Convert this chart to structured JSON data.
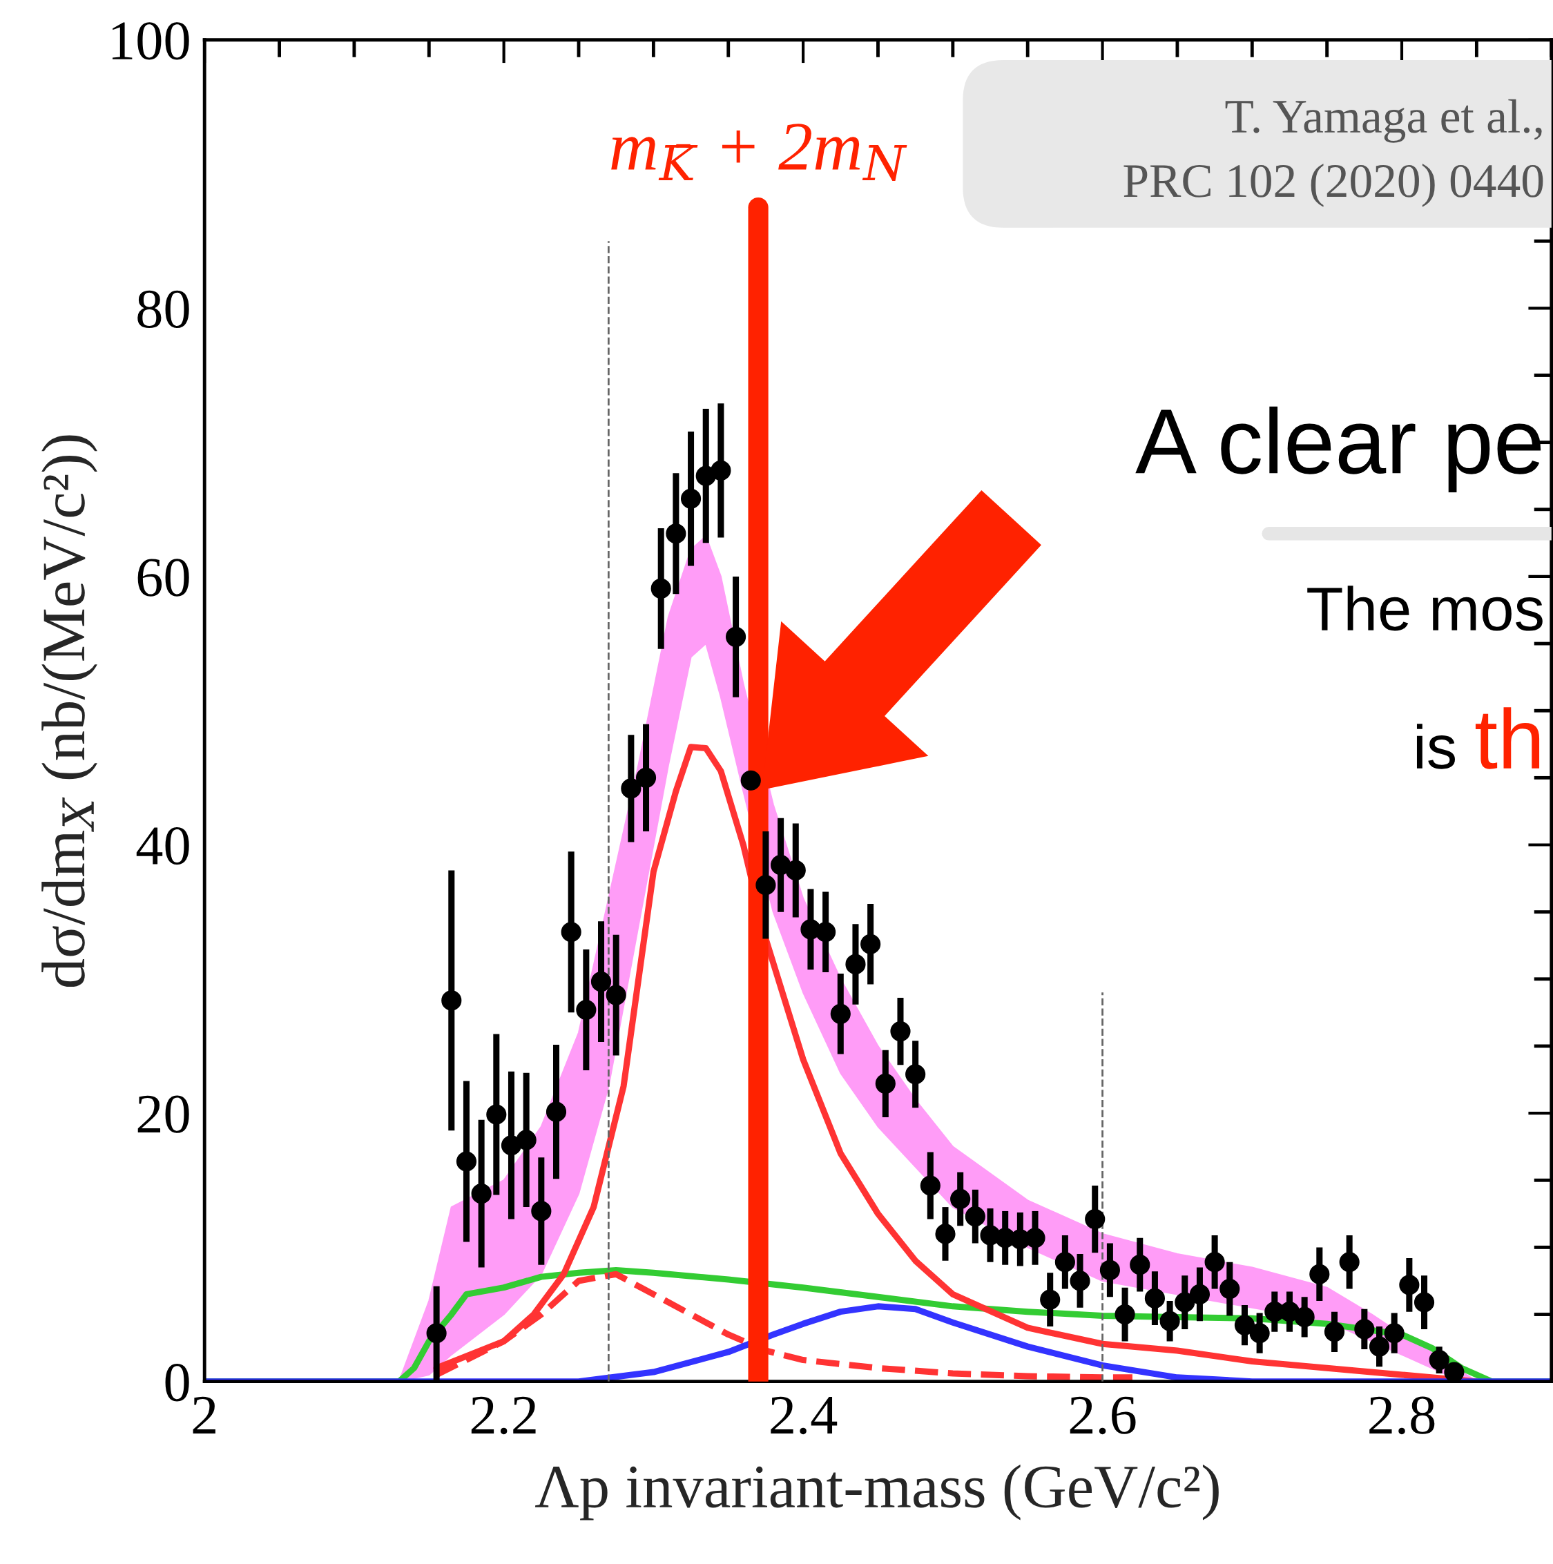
{
  "chart_data": {
    "type": "line",
    "xlabel": "Λp invariant-mass (GeV/c²)",
    "ylabel": "dσ/dm$_{X}$ (nb/(MeV/c²))",
    "xlim": [
      2,
      2.9
    ],
    "ylim": [
      0,
      100
    ],
    "xticks": [
      2,
      2.2,
      2.4,
      2.6,
      2.8
    ],
    "yticks": [
      0,
      20,
      40,
      60,
      80,
      100
    ],
    "grid": false,
    "legend": false,
    "annotations": [
      "T. Yamaga et al.,",
      "PRC 102 (2020) 0440",
      "A clear pe",
      "The mos",
      "is",
      "th"
    ],
    "ref_lines": [
      {
        "axis": "x",
        "value": 2.27,
        "color": "#666666",
        "line_style": "dashed"
      },
      {
        "axis": "x",
        "value": 2.37,
        "label": "m$_{K̄}$ + 2m$_{N}$",
        "color": "#ff2200",
        "line_style": "solid"
      },
      {
        "axis": "x",
        "value": 2.6,
        "color": "#666666",
        "line_style": "dashed"
      }
    ],
    "series": [
      {
        "type": "area",
        "color": "#ff9cf7",
        "x": [
          2.13,
          2.15,
          2.165,
          2.2,
          2.225,
          2.25,
          2.27,
          2.29,
          2.31,
          2.325,
          2.335,
          2.345,
          2.36,
          2.38,
          2.4,
          2.425,
          2.45,
          2.475,
          2.5,
          2.55,
          2.6,
          2.65,
          2.7,
          2.75,
          2.78,
          2.8,
          2.83,
          2.85
        ],
        "lower": [
          0,
          0.5,
          2,
          5,
          8,
          14,
          22,
          34,
          46,
          54,
          55,
          51,
          44,
          35,
          29,
          23,
          19,
          16,
          13,
          10,
          7.5,
          6.5,
          5.5,
          4.5,
          3,
          2,
          0.5,
          0
        ],
        "upper": [
          0,
          6,
          13,
          15,
          19,
          26,
          36,
          46,
          57,
          62,
          63,
          60,
          52,
          43,
          36,
          30,
          25,
          21,
          17.5,
          13.5,
          11,
          9.5,
          8.5,
          7,
          5,
          3.5,
          1.5,
          0
        ],
        "values": [
          null,
          null,
          null,
          null,
          null,
          null,
          null,
          null,
          null,
          null,
          null,
          null,
          null,
          null,
          null,
          null,
          null,
          null,
          null,
          null,
          null,
          null,
          null,
          null,
          null,
          null,
          null,
          null
        ]
      },
      {
        "color": "#33cc33",
        "line_style": "solid",
        "x": [
          2.0,
          2.13,
          2.14,
          2.15,
          2.165,
          2.175,
          2.2,
          2.225,
          2.25,
          2.275,
          2.3,
          2.35,
          2.4,
          2.45,
          2.5,
          2.55,
          2.6,
          2.65,
          2.7,
          2.75,
          2.8,
          2.82,
          2.84,
          2.86,
          2.9
        ],
        "values": [
          0,
          0,
          1,
          3,
          5,
          6.5,
          7,
          7.8,
          8.1,
          8.3,
          8.1,
          7.6,
          7.0,
          6.3,
          5.6,
          5.2,
          4.9,
          4.8,
          4.7,
          4.3,
          3.5,
          2.5,
          1,
          0,
          0
        ]
      },
      {
        "color": "#ff3333",
        "line_style": "solid",
        "x": [
          2.155,
          2.2,
          2.22,
          2.24,
          2.26,
          2.28,
          2.3,
          2.315,
          2.325,
          2.335,
          2.345,
          2.36,
          2.375,
          2.4,
          2.425,
          2.45,
          2.475,
          2.5,
          2.55,
          2.6,
          2.65,
          2.7,
          2.75,
          2.8,
          2.85
        ],
        "values": [
          1,
          3,
          5,
          8,
          13,
          22,
          38,
          44,
          47.3,
          47.2,
          45.5,
          40,
          33,
          24,
          17,
          12.5,
          9,
          6.5,
          4,
          2.8,
          2.3,
          1.5,
          1,
          0.5,
          0
        ]
      },
      {
        "color": "#ff3333",
        "line_style": "dashed",
        "x": [
          2.155,
          2.2,
          2.225,
          2.25,
          2.275,
          2.3,
          2.325,
          2.35,
          2.375,
          2.4,
          2.45,
          2.5,
          2.55,
          2.6,
          2.62
        ],
        "values": [
          0.5,
          3,
          5,
          7.5,
          8,
          6.5,
          5,
          3.5,
          2.3,
          1.6,
          1.0,
          0.6,
          0.4,
          0.3,
          0.3
        ]
      },
      {
        "color": "#3333ff",
        "line_style": "solid",
        "x": [
          2.0,
          2.25,
          2.3,
          2.35,
          2.38,
          2.4,
          2.425,
          2.45,
          2.475,
          2.5,
          2.55,
          2.6,
          2.65,
          2.7,
          2.9
        ],
        "values": [
          0,
          0,
          0.7,
          2.2,
          3.5,
          4.3,
          5.2,
          5.6,
          5.4,
          4.4,
          2.6,
          1.2,
          0.3,
          0,
          0
        ]
      },
      {
        "type": "scatter",
        "color": "#000000",
        "marker": "circle",
        "x": [
          2.155,
          2.165,
          2.175,
          2.185,
          2.195,
          2.205,
          2.215,
          2.225,
          2.235,
          2.245,
          2.255,
          2.265,
          2.275,
          2.285,
          2.295,
          2.305,
          2.315,
          2.325,
          2.335,
          2.345,
          2.355,
          2.365,
          2.375,
          2.385,
          2.395,
          2.405,
          2.415,
          2.425,
          2.435,
          2.445,
          2.455,
          2.465,
          2.475,
          2.485,
          2.495,
          2.505,
          2.515,
          2.525,
          2.535,
          2.545,
          2.555,
          2.565,
          2.575,
          2.585,
          2.595,
          2.605,
          2.615,
          2.625,
          2.635,
          2.645,
          2.655,
          2.665,
          2.675,
          2.685,
          2.695,
          2.705,
          2.715,
          2.725,
          2.735,
          2.745,
          2.755,
          2.765,
          2.775,
          2.785,
          2.795,
          2.805,
          2.815,
          2.825,
          2.835
        ],
        "values": [
          3.6,
          28.4,
          16.4,
          14.0,
          19.9,
          17.6,
          18.0,
          12.7,
          20.1,
          33.5,
          27.7,
          29.8,
          28.8,
          44.2,
          45.0,
          59.1,
          63.2,
          65.8,
          67.5,
          67.9,
          55.5,
          44.8,
          37.0,
          38.5,
          38.1,
          33.7,
          33.5,
          27.4,
          31.1,
          32.6,
          22.2,
          26.1,
          22.9,
          14.6,
          11.0,
          13.6,
          12.3,
          10.9,
          10.7,
          10.6,
          10.7,
          6.1,
          8.9,
          7.5,
          12.1,
          8.3,
          5.0,
          8.7,
          6.2,
          4.5,
          5.9,
          6.5,
          8.9,
          6.9,
          4.2,
          3.6,
          5.2,
          5.2,
          4.8,
          8.0,
          3.7,
          8.9,
          3.9,
          2.6,
          3.6,
          7.2,
          5.9,
          1.6,
          0.7
        ],
        "errors": [
          3.5,
          9.7,
          6,
          5.5,
          6,
          5.5,
          5,
          4,
          5,
          6,
          4.5,
          4.5,
          4.5,
          4,
          4,
          4.5,
          4.5,
          5,
          5,
          5,
          4.5,
          null,
          4,
          3.5,
          3.5,
          3,
          3,
          3,
          3,
          3,
          2.5,
          2.5,
          2.5,
          2.5,
          2,
          2,
          2,
          2,
          2,
          2,
          2,
          2,
          2,
          2,
          2.5,
          2,
          2,
          2,
          2,
          1.5,
          2,
          2,
          2,
          2,
          1.5,
          1.5,
          1.5,
          1.5,
          1.5,
          2,
          1.5,
          2,
          1.5,
          1.5,
          1.5,
          2,
          2,
          1,
          null
        ]
      }
    ]
  }
}
